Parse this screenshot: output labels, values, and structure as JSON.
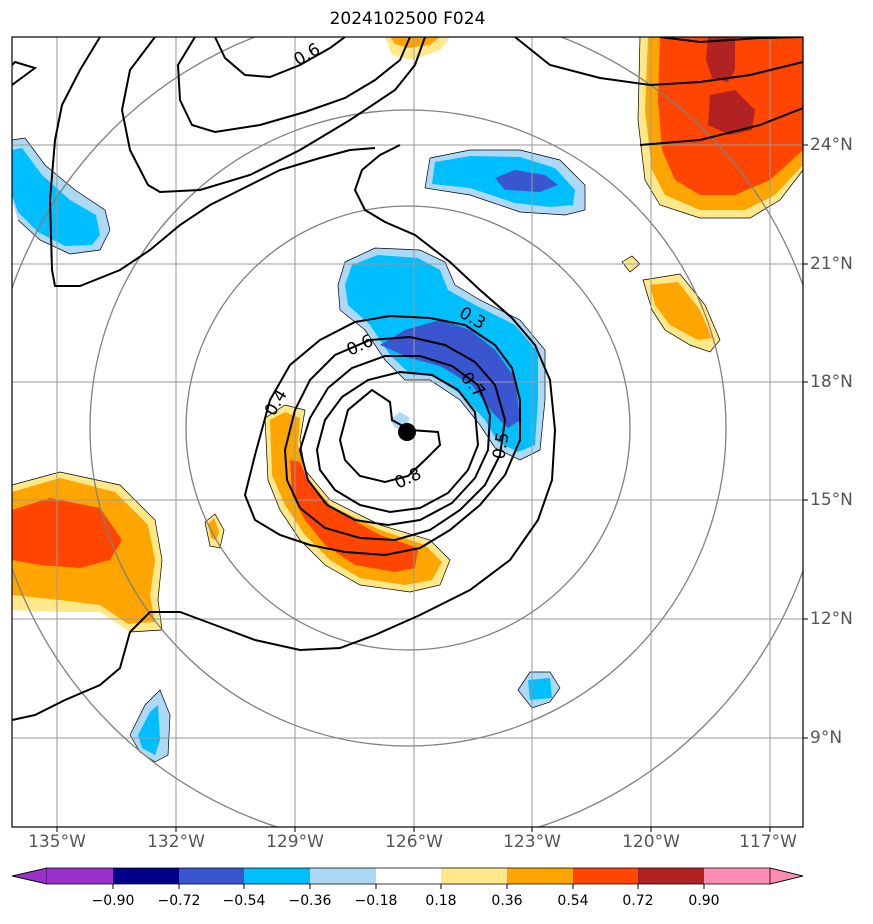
{
  "title": "2024102500 F024",
  "map": {
    "lon_ticks": [
      {
        "label": "135°W",
        "value": -135
      },
      {
        "label": "132°W",
        "value": -132
      },
      {
        "label": "129°W",
        "value": -129
      },
      {
        "label": "126°W",
        "value": -126
      },
      {
        "label": "123°W",
        "value": -123
      },
      {
        "label": "120°W",
        "value": -120
      },
      {
        "label": "117°W",
        "value": -117
      }
    ],
    "lat_ticks": [
      {
        "label": "24°N",
        "value": 24
      },
      {
        "label": "21°N",
        "value": 21
      },
      {
        "label": "18°N",
        "value": 18
      },
      {
        "label": "15°N",
        "value": 15
      },
      {
        "label": "12°N",
        "value": 12
      },
      {
        "label": "9°N",
        "value": 9
      }
    ],
    "contour_labels": [
      "0.6",
      "0.3",
      "0.6",
      "0.4",
      "0.7",
      "0.5",
      "0.8"
    ],
    "center_marker": {
      "lon": -126.2,
      "lat": 16.7
    }
  },
  "colorbar": {
    "colors": [
      "#9932cc",
      "#00008b",
      "#3a55d0",
      "#00bfff",
      "#add8f6",
      "#ffffff",
      "#ffe889",
      "#ffa500",
      "#ff4500",
      "#b22222",
      "#ff8cb4"
    ],
    "tick_labels": [
      "−0.90",
      "−0.72",
      "−0.54",
      "−0.36",
      "−0.18",
      "0.18",
      "0.36",
      "0.54",
      "0.72",
      "0.90"
    ]
  }
}
